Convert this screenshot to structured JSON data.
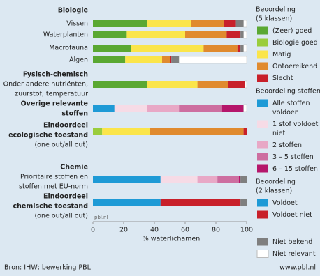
{
  "chart_data": {
    "type": "stacked-barh",
    "categories": [
      {
        "head": [
          "Biologie"
        ],
        "sub": [
          "Vissen"
        ]
      },
      {
        "head": [],
        "sub": [
          "Waterplanten"
        ]
      },
      {
        "head": [],
        "sub": [
          "Macrofauna"
        ]
      },
      {
        "head": [],
        "sub": [
          "Algen"
        ]
      },
      {
        "head": [
          "Fysisch-chemisch"
        ],
        "sub": [
          "Onder andere nutriënten,",
          "zuurstof, temperatuur"
        ]
      },
      {
        "head": [
          "Overige relevante",
          "stoffen"
        ],
        "sub": []
      },
      {
        "head": [
          "Eindoordeel",
          "ecologische toestand"
        ],
        "sub": [
          "(one out/all out)"
        ]
      },
      {
        "head": [
          "Chemie"
        ],
        "sub": [
          "Prioritaire stoffen en",
          "stoffen met EU-norm"
        ]
      },
      {
        "head": [
          "Eindoordeel",
          "chemische toestand"
        ],
        "sub": [
          "(one out/all out)"
        ]
      }
    ],
    "series": [
      {
        "name": "(Zeer) goed",
        "color": "#5aa832",
        "values": [
          35,
          22,
          25,
          21,
          35,
          null,
          null,
          null,
          null
        ]
      },
      {
        "name": "Biologie goed",
        "color": "#9acd3c",
        "values": [
          null,
          null,
          null,
          null,
          null,
          null,
          6,
          null,
          null
        ]
      },
      {
        "name": "Matig",
        "color": "#fbe54a",
        "values": [
          29,
          38,
          47,
          24,
          33,
          null,
          31,
          null,
          null
        ]
      },
      {
        "name": "Ontoereikend",
        "color": "#e08a2e",
        "values": [
          21,
          27,
          22,
          5,
          20,
          null,
          61,
          null,
          null
        ]
      },
      {
        "name": "Slecht",
        "color": "#c8202a",
        "values": [
          8,
          9,
          2,
          1,
          11,
          null,
          2,
          null,
          null
        ]
      },
      {
        "name": "Alle stoffen voldoen",
        "color": "#1e9ad6",
        "values": [
          null,
          null,
          null,
          null,
          null,
          14,
          null,
          44,
          null
        ]
      },
      {
        "name": "1 stof voldoet niet",
        "color": "#f6dbe6",
        "values": [
          null,
          null,
          null,
          null,
          null,
          21,
          null,
          24,
          null
        ]
      },
      {
        "name": "2 stoffen",
        "color": "#e8a8c6",
        "values": [
          null,
          null,
          null,
          null,
          null,
          21,
          null,
          13,
          null
        ]
      },
      {
        "name": "3 – 5 stoffen",
        "color": "#cd6ea0",
        "values": [
          null,
          null,
          null,
          null,
          null,
          28,
          null,
          14,
          null
        ]
      },
      {
        "name": "6 – 15 stoffen",
        "color": "#b5166b",
        "values": [
          null,
          null,
          null,
          null,
          null,
          14,
          null,
          1,
          null
        ]
      },
      {
        "name": "Voldoet",
        "color": "#1e9ad6",
        "values": [
          null,
          null,
          null,
          null,
          null,
          null,
          null,
          null,
          44
        ]
      },
      {
        "name": "Voldoet niet",
        "color": "#c8202a",
        "values": [
          null,
          null,
          null,
          null,
          null,
          null,
          null,
          null,
          52
        ]
      },
      {
        "name": "Niet bekend",
        "color": "#7f7f7f",
        "values": [
          5,
          2,
          2,
          5,
          null,
          null,
          null,
          4,
          4
        ]
      },
      {
        "name": "Niet relevant",
        "color": "#ffffff",
        "values": [
          2,
          2,
          2,
          44,
          1,
          2,
          null,
          null,
          null
        ]
      }
    ],
    "legend_groups": [
      {
        "title": [
          "Beoordeling",
          "(5 klassen)"
        ],
        "series": [
          0,
          1,
          2,
          3,
          4
        ]
      },
      {
        "title": [
          "Beoordeling stoffen"
        ],
        "series": [
          5,
          6,
          7,
          8,
          9
        ]
      },
      {
        "title": [
          "Beoordeling",
          "(2 klassen)"
        ],
        "series": [
          10,
          11
        ]
      },
      {
        "title": [],
        "series": [
          12,
          13
        ]
      }
    ],
    "xlim": [
      0,
      100
    ],
    "xticks": [
      0,
      20,
      40,
      60,
      80,
      100
    ],
    "xlabel": "% waterlichamen",
    "watermark": "pbl.nl",
    "source": "Bron: IHW; bewerking PBL",
    "url": "www.pbl.nl"
  }
}
